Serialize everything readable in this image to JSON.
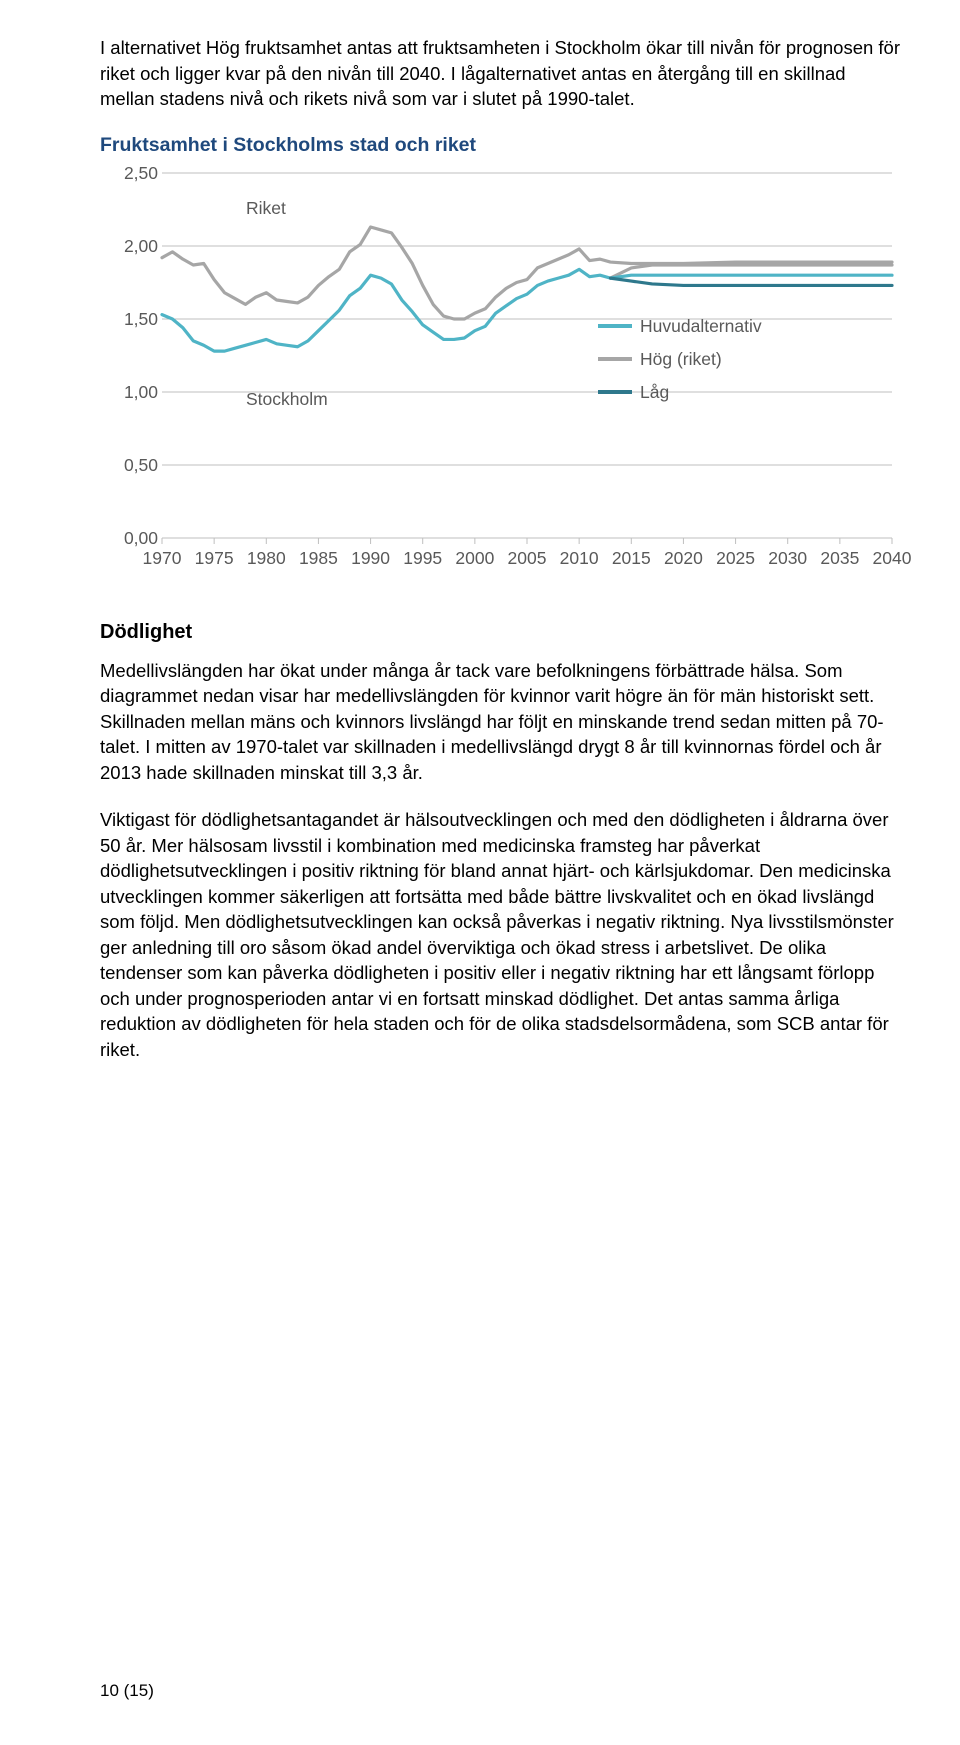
{
  "para1": "I alternativet Hög fruktsamhet antas att fruktsamheten i Stockholm ökar till nivån för prognosen för riket och ligger kvar på den nivån till 2040. I lågalternativet antas en återgång till en skillnad mellan stadens nivå och rikets nivå som var i slutet på 1990-talet.",
  "chart": {
    "title": "Fruktsamhet i Stockholms stad och riket",
    "ylim": [
      0.0,
      2.5
    ],
    "ytick_step": 0.5,
    "yticks": [
      "0,00",
      "0,50",
      "1,00",
      "1,50",
      "2,00",
      "2,50"
    ],
    "xlim": [
      1970,
      2040
    ],
    "xticks": [
      1970,
      1975,
      1980,
      1985,
      1990,
      1995,
      2000,
      2005,
      2010,
      2015,
      2020,
      2025,
      2030,
      2035,
      2040
    ],
    "xtick_labels": [
      "1970",
      "1975",
      "1980",
      "1985",
      "1990",
      "1995",
      "2000",
      "2005",
      "2010",
      "2015",
      "2020",
      "2025",
      "2030",
      "2035",
      "2040"
    ],
    "colors": {
      "riket": "#a6a6a6",
      "stockholm": "#4fb4c6",
      "huvud": "#4fb4c6",
      "hog": "#a6a6a6",
      "lag": "#2e788c",
      "axis": "#bfbfbf",
      "tick_text": "#595959",
      "background": "#ffffff",
      "title": "#1f497d"
    },
    "line_width": 3.2,
    "annot_riket": "Riket",
    "annot_stockholm": "Stockholm",
    "legend": [
      {
        "label": "Huvudalternativ",
        "color": "#4fb4c6"
      },
      {
        "label": "Hög (riket)",
        "color": "#a6a6a6"
      },
      {
        "label": "Låg",
        "color": "#2e788c"
      }
    ],
    "series": {
      "riket": [
        [
          1970,
          1.92
        ],
        [
          1971,
          1.96
        ],
        [
          1972,
          1.91
        ],
        [
          1973,
          1.87
        ],
        [
          1974,
          1.88
        ],
        [
          1975,
          1.77
        ],
        [
          1976,
          1.68
        ],
        [
          1977,
          1.64
        ],
        [
          1978,
          1.6
        ],
        [
          1979,
          1.65
        ],
        [
          1980,
          1.68
        ],
        [
          1981,
          1.63
        ],
        [
          1982,
          1.62
        ],
        [
          1983,
          1.61
        ],
        [
          1984,
          1.65
        ],
        [
          1985,
          1.73
        ],
        [
          1986,
          1.79
        ],
        [
          1987,
          1.84
        ],
        [
          1988,
          1.96
        ],
        [
          1989,
          2.01
        ],
        [
          1990,
          2.13
        ],
        [
          1991,
          2.11
        ],
        [
          1992,
          2.09
        ],
        [
          1993,
          1.99
        ],
        [
          1994,
          1.88
        ],
        [
          1995,
          1.73
        ],
        [
          1996,
          1.6
        ],
        [
          1997,
          1.52
        ],
        [
          1998,
          1.5
        ],
        [
          1999,
          1.5
        ],
        [
          2000,
          1.54
        ],
        [
          2001,
          1.57
        ],
        [
          2002,
          1.65
        ],
        [
          2003,
          1.71
        ],
        [
          2004,
          1.75
        ],
        [
          2005,
          1.77
        ],
        [
          2006,
          1.85
        ],
        [
          2007,
          1.88
        ],
        [
          2008,
          1.91
        ],
        [
          2009,
          1.94
        ],
        [
          2010,
          1.98
        ],
        [
          2011,
          1.9
        ],
        [
          2012,
          1.91
        ],
        [
          2013,
          1.89
        ],
        [
          2015,
          1.88
        ],
        [
          2020,
          1.88
        ],
        [
          2025,
          1.89
        ],
        [
          2030,
          1.89
        ],
        [
          2035,
          1.89
        ],
        [
          2040,
          1.89
        ]
      ],
      "stockholm": [
        [
          1970,
          1.53
        ],
        [
          1971,
          1.5
        ],
        [
          1972,
          1.44
        ],
        [
          1973,
          1.35
        ],
        [
          1974,
          1.32
        ],
        [
          1975,
          1.28
        ],
        [
          1976,
          1.28
        ],
        [
          1977,
          1.3
        ],
        [
          1978,
          1.32
        ],
        [
          1979,
          1.34
        ],
        [
          1980,
          1.36
        ],
        [
          1981,
          1.33
        ],
        [
          1982,
          1.32
        ],
        [
          1983,
          1.31
        ],
        [
          1984,
          1.35
        ],
        [
          1985,
          1.42
        ],
        [
          1986,
          1.49
        ],
        [
          1987,
          1.56
        ],
        [
          1988,
          1.66
        ],
        [
          1989,
          1.71
        ],
        [
          1990,
          1.8
        ],
        [
          1991,
          1.78
        ],
        [
          1992,
          1.74
        ],
        [
          1993,
          1.63
        ],
        [
          1994,
          1.55
        ],
        [
          1995,
          1.46
        ],
        [
          1996,
          1.41
        ],
        [
          1997,
          1.36
        ],
        [
          1998,
          1.36
        ],
        [
          1999,
          1.37
        ],
        [
          2000,
          1.42
        ],
        [
          2001,
          1.45
        ],
        [
          2002,
          1.54
        ],
        [
          2003,
          1.59
        ],
        [
          2004,
          1.64
        ],
        [
          2005,
          1.67
        ],
        [
          2006,
          1.73
        ],
        [
          2007,
          1.76
        ],
        [
          2008,
          1.78
        ],
        [
          2009,
          1.8
        ],
        [
          2010,
          1.84
        ],
        [
          2011,
          1.79
        ],
        [
          2012,
          1.8
        ],
        [
          2013,
          1.78
        ]
      ],
      "huvud_proj": [
        [
          2013,
          1.78
        ],
        [
          2015,
          1.8
        ],
        [
          2020,
          1.8
        ],
        [
          2025,
          1.8
        ],
        [
          2030,
          1.8
        ],
        [
          2035,
          1.8
        ],
        [
          2040,
          1.8
        ]
      ],
      "hog_proj": [
        [
          2013,
          1.78
        ],
        [
          2015,
          1.85
        ],
        [
          2017,
          1.87
        ],
        [
          2020,
          1.87
        ],
        [
          2025,
          1.87
        ],
        [
          2030,
          1.87
        ],
        [
          2035,
          1.87
        ],
        [
          2040,
          1.87
        ]
      ],
      "lag_proj": [
        [
          2013,
          1.78
        ],
        [
          2015,
          1.76
        ],
        [
          2017,
          1.74
        ],
        [
          2020,
          1.73
        ],
        [
          2025,
          1.73
        ],
        [
          2030,
          1.73
        ],
        [
          2035,
          1.73
        ],
        [
          2040,
          1.73
        ]
      ]
    }
  },
  "h2": "Dödlighet",
  "para2": "Medellivslängden har ökat under många år tack vare befolkningens förbättrade hälsa. Som diagrammet nedan visar har medellivslängden för kvinnor varit högre än för män historiskt sett. Skillnaden mellan mäns och kvinnors livslängd har följt en minskande trend sedan mitten på 70-talet. I mitten av 1970-talet var skillnaden i medellivslängd drygt 8 år till kvinnornas fördel och år 2013 hade skillnaden minskat till 3,3 år.",
  "para3": "Viktigast för dödlighetsantagandet är hälsoutvecklingen och med den dödligheten i åldrarna över 50 år. Mer hälsosam livsstil i kombination med medicinska framsteg har påverkat dödlighetsutvecklingen i positiv riktning för bland annat hjärt- och kärlsjukdomar. Den medicinska utvecklingen kommer säkerligen att fortsätta med både bättre livskvalitet och en ökad livslängd som följd. Men dödlighetsutvecklingen kan också påverkas i negativ riktning. Nya livsstilsmönster ger anledning till oro såsom ökad andel överviktiga och ökad stress i arbetslivet. De olika tendenser som kan påverka dödligheten i positiv eller i negativ riktning har ett långsamt förlopp och under prognosperioden antar vi en fortsatt minskad dödlighet. Det antas samma årliga reduktion av dödligheten för hela staden och för de olika stadsdelsormådena, som SCB antar för riket.",
  "footer": "10 (15)"
}
